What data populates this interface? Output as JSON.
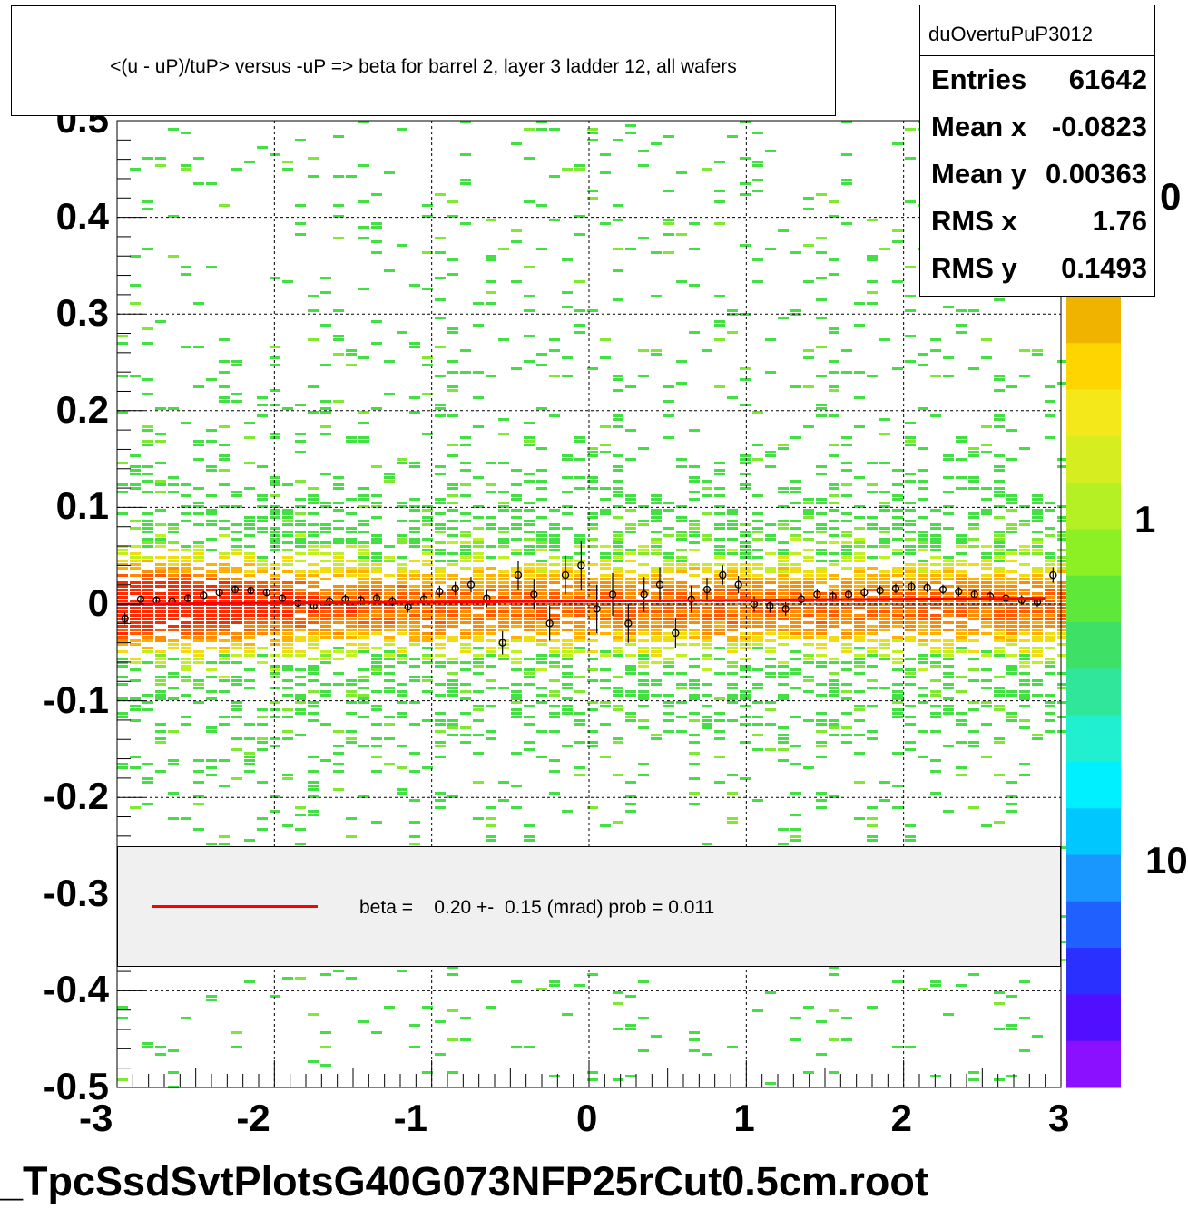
{
  "title": "<(u - uP)/tuP> versus  -uP => beta for barrel 2, layer 3 ladder 12, all wafers",
  "footer": "_TpcSsdSvtPlotsG40G073NFP25rCut0.5cm.root",
  "stats": {
    "name": "duOvertuPuP3012",
    "rows": [
      {
        "label": "Entries",
        "value": "61642"
      },
      {
        "label": "Mean x",
        "value": "-0.0823"
      },
      {
        "label": "Mean y",
        "value": "0.00363"
      },
      {
        "label": "RMS x",
        "value": "1.76"
      },
      {
        "label": "RMS y",
        "value": "0.1493"
      }
    ]
  },
  "legend": {
    "fit_label": "beta =    0.20 +-  0.15 (mrad) prob = 0.011",
    "line_color": "#ff0000"
  },
  "palette_labels": [
    "0",
    "1",
    "10"
  ],
  "colors": {
    "palette": [
      "#f0b400",
      "#ffd500",
      "#f5e81a",
      "#d6ee20",
      "#b4f024",
      "#8cf024",
      "#5ee83a",
      "#3ee066",
      "#30e69a",
      "#20f0d0",
      "#00f0ff",
      "#00c8ff",
      "#1a96ff",
      "#2060ff",
      "#2a30ff",
      "#5010ff",
      "#8a10ff"
    ],
    "profile_marker": "#000000",
    "fit_line": "#ff0000"
  },
  "chart_data": {
    "type": "heatmap",
    "title": "<(u - uP)/tuP> versus  -uP => beta for barrel 2, layer 3 ladder 12, all wafers",
    "xlabel": "",
    "ylabel": "",
    "xlim": [
      -3,
      3
    ],
    "ylim": [
      -0.5,
      0.5
    ],
    "x_ticks": [
      "-3",
      "-2",
      "-1",
      "0",
      "1",
      "2",
      "3"
    ],
    "y_ticks": [
      "-0.5",
      "-0.4",
      "-0.3",
      "-0.2",
      "-0.1",
      "0",
      "0.1",
      "0.2",
      "0.3",
      "0.4",
      "0.5"
    ],
    "grid": true,
    "color_scale": "log",
    "profile": {
      "x": [
        -2.95,
        -2.85,
        -2.75,
        -2.65,
        -2.55,
        -2.45,
        -2.35,
        -2.25,
        -2.15,
        -2.05,
        -1.95,
        -1.85,
        -1.75,
        -1.65,
        -1.55,
        -1.45,
        -1.35,
        -1.25,
        -1.15,
        -1.05,
        -0.95,
        -0.85,
        -0.75,
        -0.65,
        -0.55,
        -0.45,
        -0.35,
        -0.25,
        -0.15,
        -0.05,
        0.05,
        0.15,
        0.25,
        0.35,
        0.45,
        0.55,
        0.65,
        0.75,
        0.85,
        0.95,
        1.05,
        1.15,
        1.25,
        1.35,
        1.45,
        1.55,
        1.65,
        1.75,
        1.85,
        1.95,
        2.05,
        2.15,
        2.25,
        2.35,
        2.45,
        2.55,
        2.65,
        2.75,
        2.85,
        2.95
      ],
      "y": [
        -0.015,
        0.005,
        0.004,
        0.003,
        0.006,
        0.009,
        0.012,
        0.015,
        0.014,
        0.012,
        0.006,
        0.001,
        -0.002,
        0.003,
        0.005,
        0.004,
        0.006,
        0.003,
        -0.003,
        0.005,
        0.013,
        0.016,
        0.02,
        0.006,
        -0.04,
        0.03,
        0.01,
        -0.02,
        0.03,
        0.04,
        -0.005,
        0.01,
        -0.02,
        0.01,
        0.02,
        -0.03,
        0.005,
        0.015,
        0.03,
        0.02,
        0.0,
        -0.002,
        -0.005,
        0.005,
        0.01,
        0.008,
        0.01,
        0.012,
        0.014,
        0.016,
        0.018,
        0.017,
        0.015,
        0.013,
        0.01,
        0.008,
        0.006,
        0.004,
        0.002,
        0.03
      ],
      "errors": [
        0.006,
        0.004,
        0.004,
        0.004,
        0.004,
        0.004,
        0.004,
        0.004,
        0.004,
        0.004,
        0.004,
        0.004,
        0.004,
        0.005,
        0.005,
        0.005,
        0.005,
        0.005,
        0.006,
        0.006,
        0.006,
        0.007,
        0.008,
        0.009,
        0.012,
        0.015,
        0.016,
        0.018,
        0.02,
        0.025,
        0.025,
        0.022,
        0.02,
        0.018,
        0.018,
        0.016,
        0.014,
        0.012,
        0.01,
        0.009,
        0.008,
        0.007,
        0.007,
        0.006,
        0.006,
        0.005,
        0.005,
        0.005,
        0.005,
        0.005,
        0.005,
        0.005,
        0.005,
        0.005,
        0.005,
        0.005,
        0.005,
        0.005,
        0.005,
        0.008
      ]
    },
    "fit": {
      "type": "line",
      "y_at_xmin": 0.0,
      "y_at_xmax": 0.006,
      "x_range": [
        -3,
        2.9
      ]
    }
  }
}
